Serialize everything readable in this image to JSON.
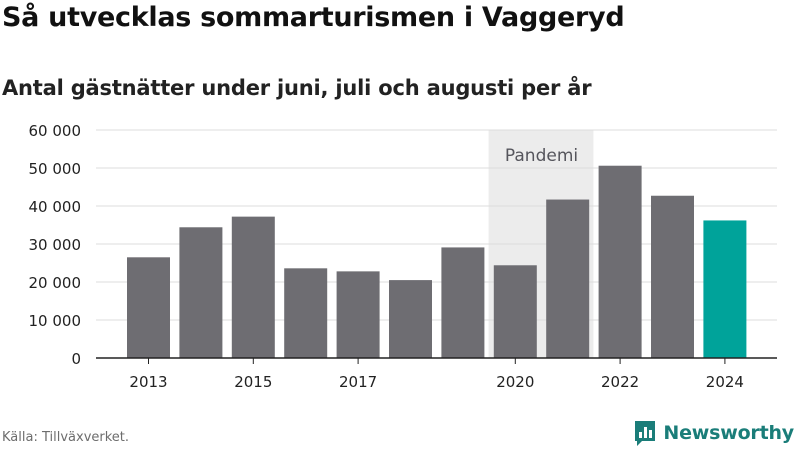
{
  "header": {
    "title": "Så utvecklas sommarturismen i Vaggeryd",
    "subtitle": "Antal gästnätter under juni, juli och augusti per år"
  },
  "footer": {
    "source": "Källa: Tillväxverket.",
    "brand_name": "Newsworthy",
    "brand_icon": "newsworthy-logo-icon"
  },
  "colors": {
    "bar": "#6e6d72",
    "highlight": "#00a39a",
    "band": "#ececec",
    "grid": "#dcdcdc",
    "axis": "#222222",
    "brand": "#1a7d79"
  },
  "chart_data": {
    "type": "bar",
    "categories": [
      "2013",
      "2014",
      "2015",
      "2016",
      "2017",
      "2018",
      "2019",
      "2020",
      "2021",
      "2022",
      "2023",
      "2024"
    ],
    "series": [
      {
        "values": [
          26500,
          34400,
          37200,
          23600,
          22800,
          20500,
          29100,
          24400,
          41700,
          50600,
          42700,
          36200
        ]
      }
    ],
    "highlight_category": "2024",
    "x_tick_labels": [
      "2013",
      "2015",
      "2017",
      "2020",
      "2022",
      "2024"
    ],
    "y_tick_values": [
      0,
      10000,
      20000,
      30000,
      40000,
      50000,
      60000
    ],
    "y_tick_labels": [
      "0",
      "10 000",
      "20 000",
      "30 000",
      "40 000",
      "50 000",
      "60 000"
    ],
    "ylim": [
      0,
      60000
    ],
    "grid": true,
    "xlabel": "",
    "ylabel": "",
    "annotation": {
      "label": "Pandemi",
      "from_category": "2020",
      "to_category": "2021"
    }
  }
}
